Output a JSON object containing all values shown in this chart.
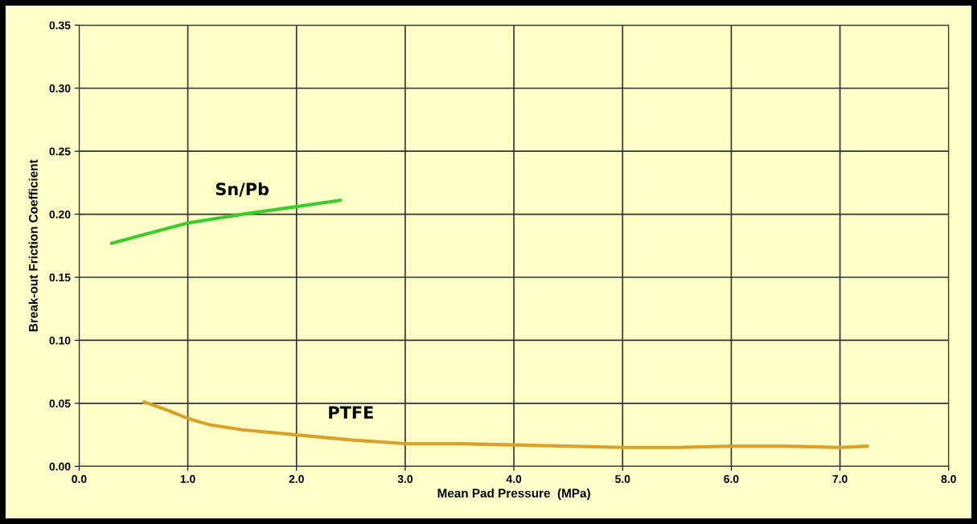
{
  "chart_data": {
    "type": "line",
    "xlabel": "Mean Pad Pressure  (MPa)",
    "ylabel": "Break-out Friction Coefficient",
    "xlim": [
      0,
      8
    ],
    "xticks": [
      {
        "value": 0,
        "label": "0.0"
      },
      {
        "value": 1,
        "label": "1.0"
      },
      {
        "value": 2,
        "label": "2.0"
      },
      {
        "value": 3,
        "label": "3.0"
      },
      {
        "value": 4,
        "label": "4.0"
      },
      {
        "value": 5,
        "label": "5.0"
      },
      {
        "value": 6,
        "label": "6.0"
      },
      {
        "value": 7,
        "label": "7.0"
      },
      {
        "value": 8,
        "label": "8.0"
      }
    ],
    "ylim": [
      0,
      0.35
    ],
    "yticks": [
      {
        "value": 0,
        "label": "0.00"
      },
      {
        "value": 0.05,
        "label": "0.05"
      },
      {
        "value": 0.1,
        "label": "0.10"
      },
      {
        "value": 0.15,
        "label": "0.15"
      },
      {
        "value": 0.2,
        "label": "0.20"
      },
      {
        "value": 0.25,
        "label": "0.25"
      },
      {
        "value": 0.3,
        "label": "0.30"
      },
      {
        "value": 0.35,
        "label": "0.35"
      }
    ],
    "grid": true,
    "legend": false,
    "marker": "none",
    "line_style": "solid",
    "series": [
      {
        "name": "Sn/Pb",
        "color": "#3ccc2c",
        "x": [
          0.3,
          0.6,
          1.0,
          1.5,
          2.0,
          2.4
        ],
        "values": [
          0.177,
          0.184,
          0.193,
          0.2,
          0.206,
          0.211
        ]
      },
      {
        "name": "PTFE",
        "color": "#d9a02a",
        "x": [
          0.6,
          0.8,
          1.0,
          1.2,
          1.5,
          2.0,
          2.5,
          3.0,
          3.5,
          4.0,
          4.5,
          5.0,
          5.5,
          6.0,
          6.5,
          7.0,
          7.25
        ],
        "values": [
          0.051,
          0.045,
          0.038,
          0.033,
          0.029,
          0.025,
          0.021,
          0.018,
          0.018,
          0.017,
          0.016,
          0.015,
          0.015,
          0.016,
          0.016,
          0.015,
          0.016
        ]
      }
    ]
  }
}
